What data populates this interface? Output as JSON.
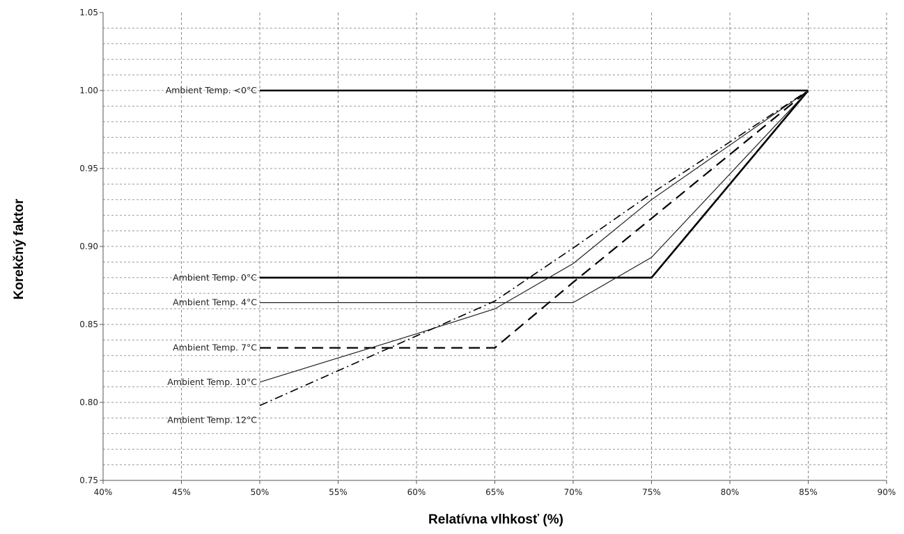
{
  "chart_data": {
    "type": "line",
    "xlabel": "Relatívna vlhkosť (%)",
    "ylabel": "Korekčný faktor",
    "xlim": [
      40,
      90
    ],
    "ylim": [
      0.75,
      1.05
    ],
    "x_ticks": [
      40,
      45,
      50,
      55,
      60,
      65,
      70,
      75,
      80,
      85,
      90
    ],
    "x_tick_labels": [
      "40%",
      "45%",
      "50%",
      "55%",
      "60%",
      "65%",
      "70%",
      "75%",
      "80%",
      "85%",
      "90%"
    ],
    "y_ticks": [
      0.75,
      0.8,
      0.85,
      0.9,
      0.95,
      1.0,
      1.05
    ],
    "y_tick_labels": [
      "0.75",
      "0.80",
      "0.85",
      "0.90",
      "0.95",
      "1.00",
      "1.05"
    ],
    "grid": true,
    "grid_minor_y": 0.01,
    "series": [
      {
        "name": "Ambient Temp. <0°C",
        "label_text": "Ambient Temp.  <0°C",
        "style": "thick-solid",
        "x": [
          50,
          85
        ],
        "y": [
          1.0,
          1.0
        ]
      },
      {
        "name": "Ambient Temp. 0°C",
        "label_text": "Ambient Temp.  0°C",
        "style": "thick-solid",
        "x": [
          50,
          75,
          85
        ],
        "y": [
          0.88,
          0.88,
          1.0
        ]
      },
      {
        "name": "Ambient Temp. 4°C",
        "label_text": "Ambient Temp.  4°C",
        "style": "thin-solid",
        "x": [
          50,
          70,
          75,
          85
        ],
        "y": [
          0.864,
          0.864,
          0.893,
          1.0
        ]
      },
      {
        "name": "Ambient Temp. 7°C",
        "label_text": "Ambient Temp.  7°C",
        "style": "dashed",
        "x": [
          50,
          65,
          70,
          85
        ],
        "y": [
          0.835,
          0.835,
          0.877,
          1.0
        ]
      },
      {
        "name": "Ambient Temp. 10°C",
        "label_text": "Ambient Temp. 10°C",
        "style": "thin-solid",
        "x": [
          50,
          60,
          65,
          70,
          75,
          85
        ],
        "y": [
          0.813,
          0.844,
          0.86,
          0.889,
          0.93,
          1.0
        ]
      },
      {
        "name": "Ambient Temp. 12°C",
        "label_text": "Ambient Temp. 12°C",
        "style": "dash-dot",
        "x": [
          50,
          65,
          70,
          75,
          85
        ],
        "y": [
          0.798,
          0.865,
          0.899,
          0.934,
          1.0
        ]
      }
    ]
  }
}
